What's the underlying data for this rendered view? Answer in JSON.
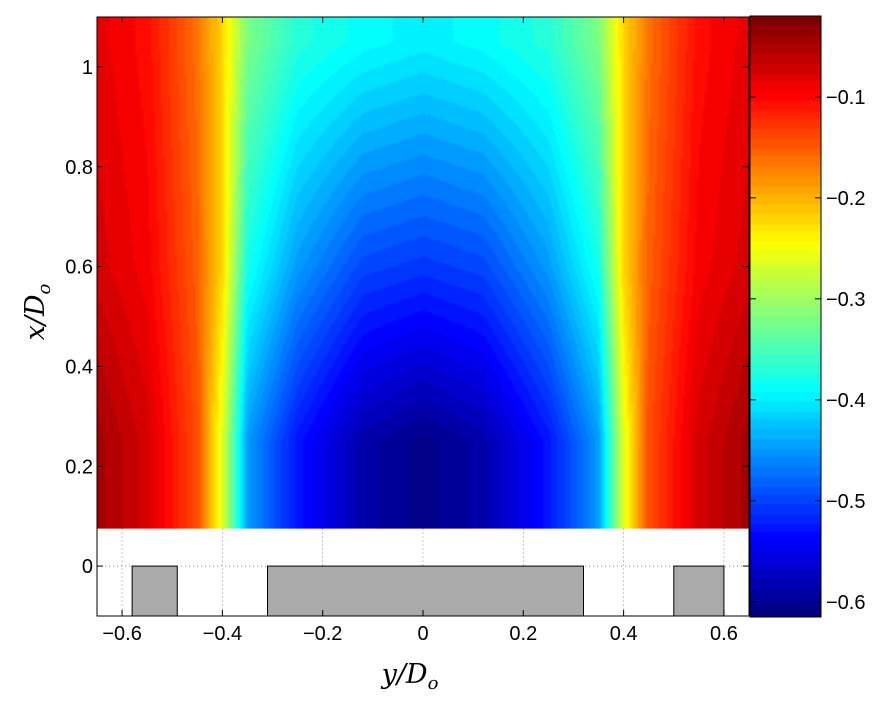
{
  "chart_data": {
    "type": "heatmap",
    "xlabel": "y/D",
    "xlabel_sub": "o",
    "ylabel": "x/D",
    "ylabel_sub": "o",
    "xlim": [
      -0.65,
      0.65
    ],
    "ylim": [
      -0.1,
      1.1
    ],
    "contour_region_ylim": [
      0.075,
      1.1
    ],
    "x_ticks": [
      -0.6,
      -0.4,
      -0.2,
      0,
      0.2,
      0.4,
      0.6
    ],
    "x_tick_labels": [
      "−0.6",
      "−0.4",
      "−0.2",
      "0",
      "0.2",
      "0.4",
      "0.6"
    ],
    "y_ticks": [
      0,
      0.2,
      0.4,
      0.6,
      0.8,
      1
    ],
    "y_tick_labels": [
      "0",
      "0.2",
      "0.4",
      "0.6",
      "0.8",
      "1"
    ],
    "colorbar": {
      "colormap": "jet",
      "clim": [
        -0.615,
        -0.02
      ],
      "ticks": [
        -0.1,
        -0.2,
        -0.3,
        -0.4,
        -0.5,
        -0.6
      ],
      "tick_labels": [
        "−0.1",
        "−0.2",
        "−0.3",
        "−0.4",
        "−0.5",
        "−0.6"
      ]
    },
    "field_profile_y": [
      -0.65,
      -0.55,
      -0.45,
      -0.4,
      -0.35,
      -0.25,
      -0.12,
      0,
      0.12,
      0.25,
      0.35,
      0.4,
      0.45,
      0.55,
      0.65
    ],
    "field_profile_values": {
      "x_0.25": [
        -0.04,
        -0.07,
        -0.14,
        -0.26,
        -0.45,
        -0.53,
        -0.59,
        -0.61,
        -0.59,
        -0.53,
        -0.45,
        -0.26,
        -0.14,
        -0.07,
        -0.04
      ],
      "x_0.60": [
        -0.07,
        -0.09,
        -0.15,
        -0.22,
        -0.38,
        -0.45,
        -0.5,
        -0.51,
        -0.5,
        -0.45,
        -0.38,
        -0.22,
        -0.15,
        -0.09,
        -0.07
      ],
      "x_1.05": [
        -0.08,
        -0.1,
        -0.16,
        -0.22,
        -0.32,
        -0.37,
        -0.39,
        -0.4,
        -0.39,
        -0.37,
        -0.32,
        -0.22,
        -0.16,
        -0.1,
        -0.08
      ]
    },
    "blocks": [
      {
        "x": [
          -0.58,
          -0.49
        ],
        "y": [
          -0.1,
          0
        ]
      },
      {
        "x": [
          -0.31,
          0.32
        ],
        "y": [
          -0.1,
          0
        ]
      },
      {
        "x": [
          0.5,
          0.6
        ],
        "y": [
          -0.1,
          0
        ]
      }
    ],
    "grid": "dotted in lower panel",
    "colors": {
      "block_fill": "#aaaaaa",
      "block_edge": "#000000"
    }
  }
}
